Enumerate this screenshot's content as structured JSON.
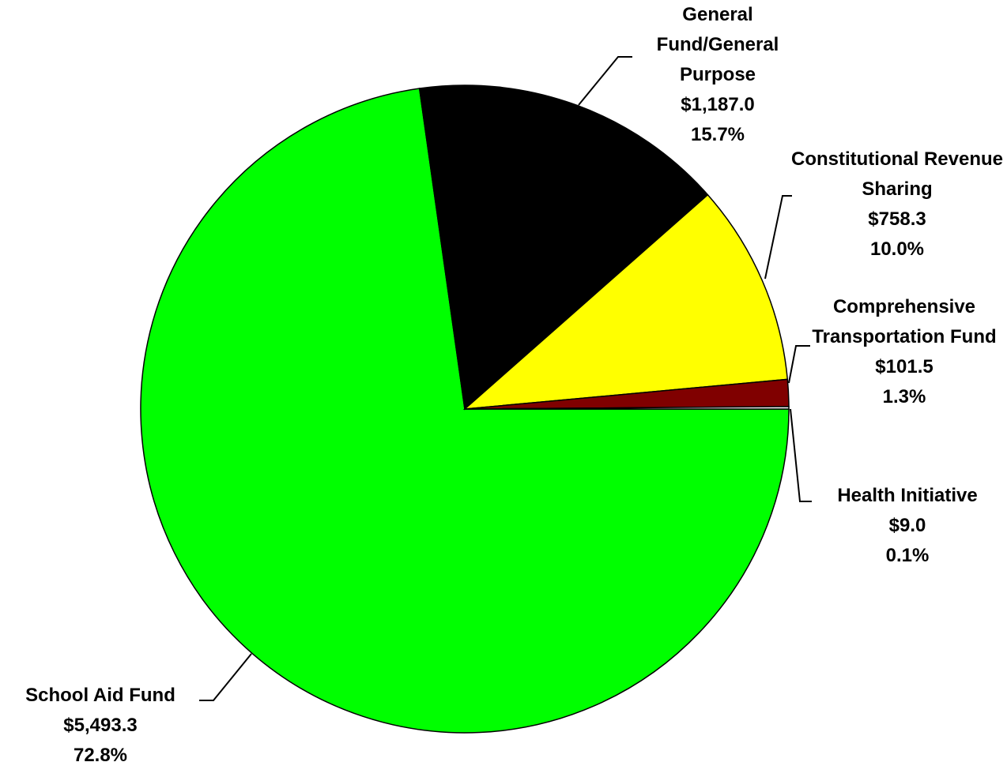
{
  "chart_data": {
    "type": "pie",
    "categories": [
      "School Aid Fund",
      "General Fund/General Purpose",
      "Constitutional Revenue Sharing",
      "Comprehensive Transportation Fund",
      "Health Initiative"
    ],
    "values": [
      5493.3,
      1187.0,
      758.3,
      101.5,
      9.0
    ],
    "value_labels": [
      "$5,493.3",
      "$1,187.0",
      "$758.3",
      "$101.5",
      "$9.0"
    ],
    "percentages": [
      72.8,
      15.7,
      10.0,
      1.3,
      0.1
    ],
    "percentage_labels": [
      "72.8%",
      "15.7%",
      "10.0%",
      "1.3%",
      "0.1%"
    ],
    "colors": [
      "#00ff00",
      "#000000",
      "#ffff00",
      "#800000",
      "#ffffff"
    ]
  }
}
